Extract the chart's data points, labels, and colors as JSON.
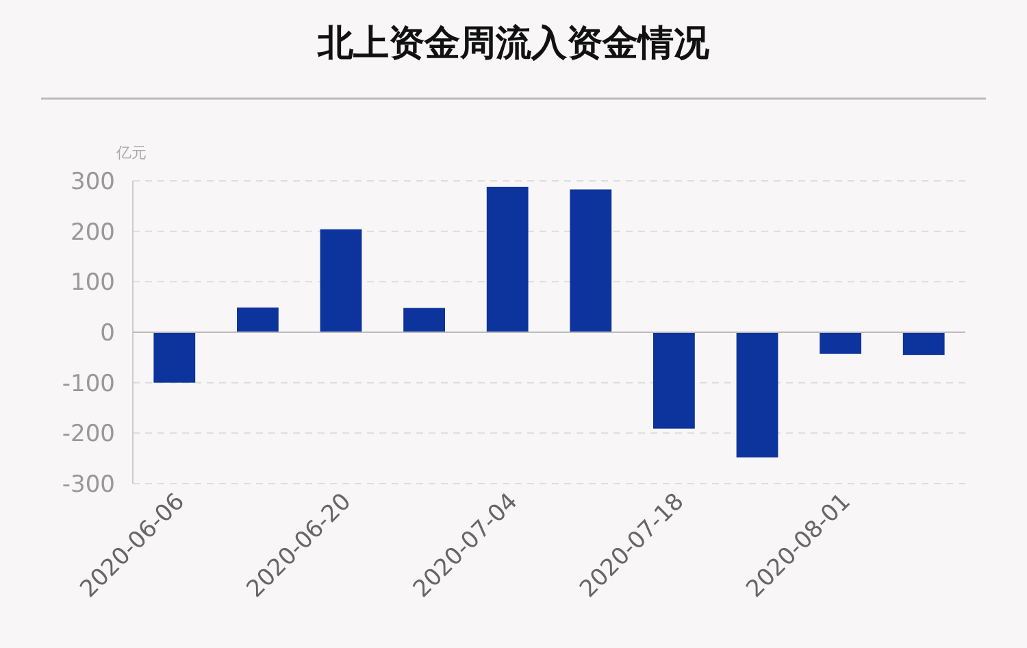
{
  "chart_data": {
    "type": "bar",
    "title": "北上资金周流入资金情况",
    "ylabel": "亿元",
    "categories": [
      "2020-06-06",
      null,
      "2020-06-20",
      null,
      "2020-07-04",
      null,
      "2020-07-18",
      null,
      "2020-08-01",
      null
    ],
    "values": [
      -100,
      49,
      204,
      48,
      288,
      283,
      -191,
      -248,
      -43,
      -45
    ],
    "color": "#0c349c",
    "ylim": [
      -300,
      300
    ],
    "yticks": [
      -300,
      -200,
      -100,
      0,
      100,
      200,
      300
    ],
    "grid": "y"
  }
}
